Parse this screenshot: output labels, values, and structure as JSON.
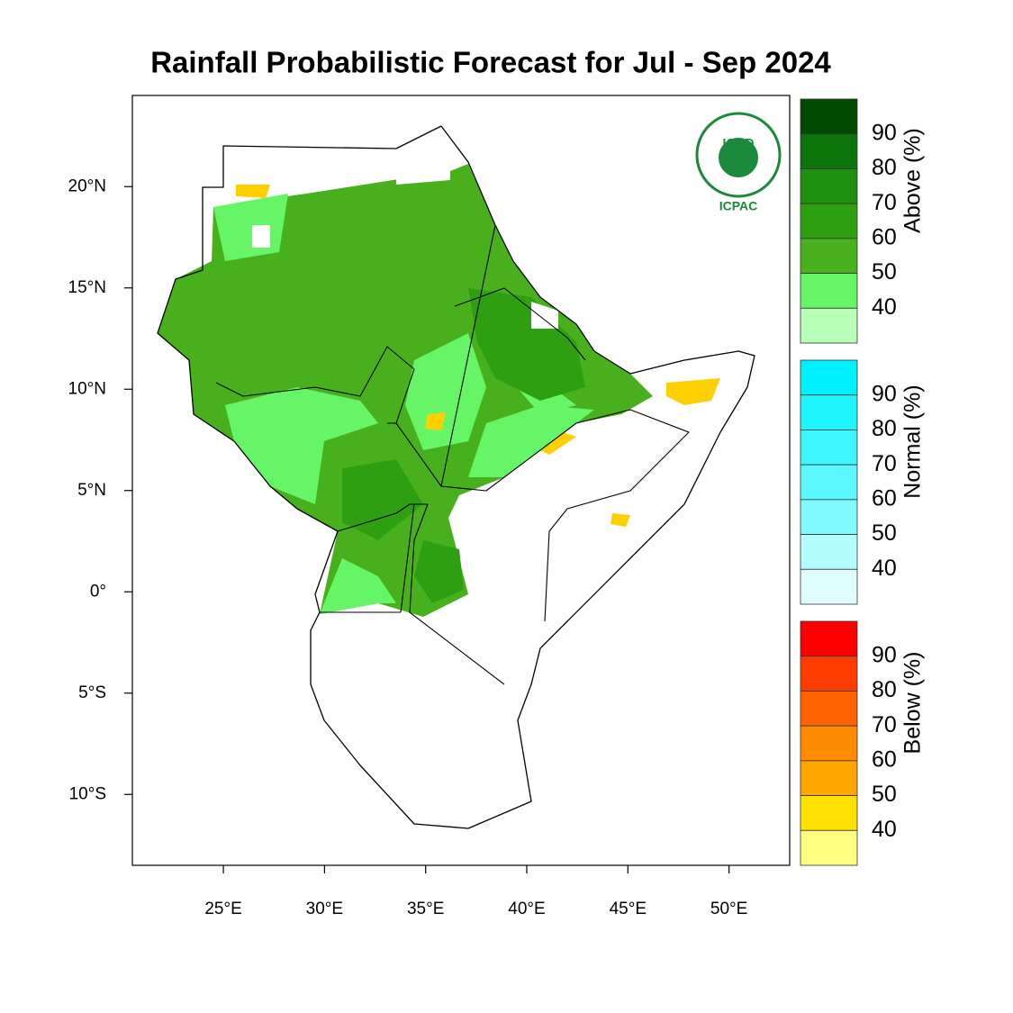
{
  "title": "Rainfall Probabilistic Forecast for Jul - Sep 2024",
  "logo": {
    "name": "IGAD",
    "caption": "ICPAC"
  },
  "map": {
    "xlim": [
      20.5,
      53
    ],
    "ylim": [
      -13.5,
      24.5
    ],
    "xticks": [
      {
        "value": 25,
        "label": "25°E"
      },
      {
        "value": 30,
        "label": "30°E"
      },
      {
        "value": 35,
        "label": "35°E"
      },
      {
        "value": 40,
        "label": "40°E"
      },
      {
        "value": 45,
        "label": "45°E"
      },
      {
        "value": 50,
        "label": "50°E"
      }
    ],
    "yticks": [
      {
        "value": 20,
        "label": "20°N"
      },
      {
        "value": 15,
        "label": "15°N"
      },
      {
        "value": 10,
        "label": "10°N"
      },
      {
        "value": 5,
        "label": "5°N"
      },
      {
        "value": 0,
        "label": "0°"
      },
      {
        "value": -5,
        "label": "5°S"
      },
      {
        "value": -10,
        "label": "10°S"
      }
    ]
  },
  "legends": [
    {
      "title": "Above (%)",
      "colors": [
        "#004a00",
        "#0b740b",
        "#1f8f0f",
        "#2f9f12",
        "#48b01c",
        "#66f566",
        "#b8ffb8"
      ],
      "ticks": [
        90,
        80,
        70,
        60,
        50,
        40
      ]
    },
    {
      "title": "Normal (%)",
      "colors": [
        "#00f0ff",
        "#1ff5ff",
        "#40f5ff",
        "#5cf7ff",
        "#80faff",
        "#b3fcff",
        "#e0feff"
      ],
      "ticks": [
        90,
        80,
        70,
        60,
        50,
        40
      ]
    },
    {
      "title": "Below (%)",
      "colors": [
        "#ff0000",
        "#ff3c00",
        "#ff6400",
        "#ff8c00",
        "#ffa500",
        "#ffe000",
        "#ffff80"
      ],
      "ticks": [
        90,
        80,
        70,
        60,
        50,
        40
      ]
    }
  ]
}
